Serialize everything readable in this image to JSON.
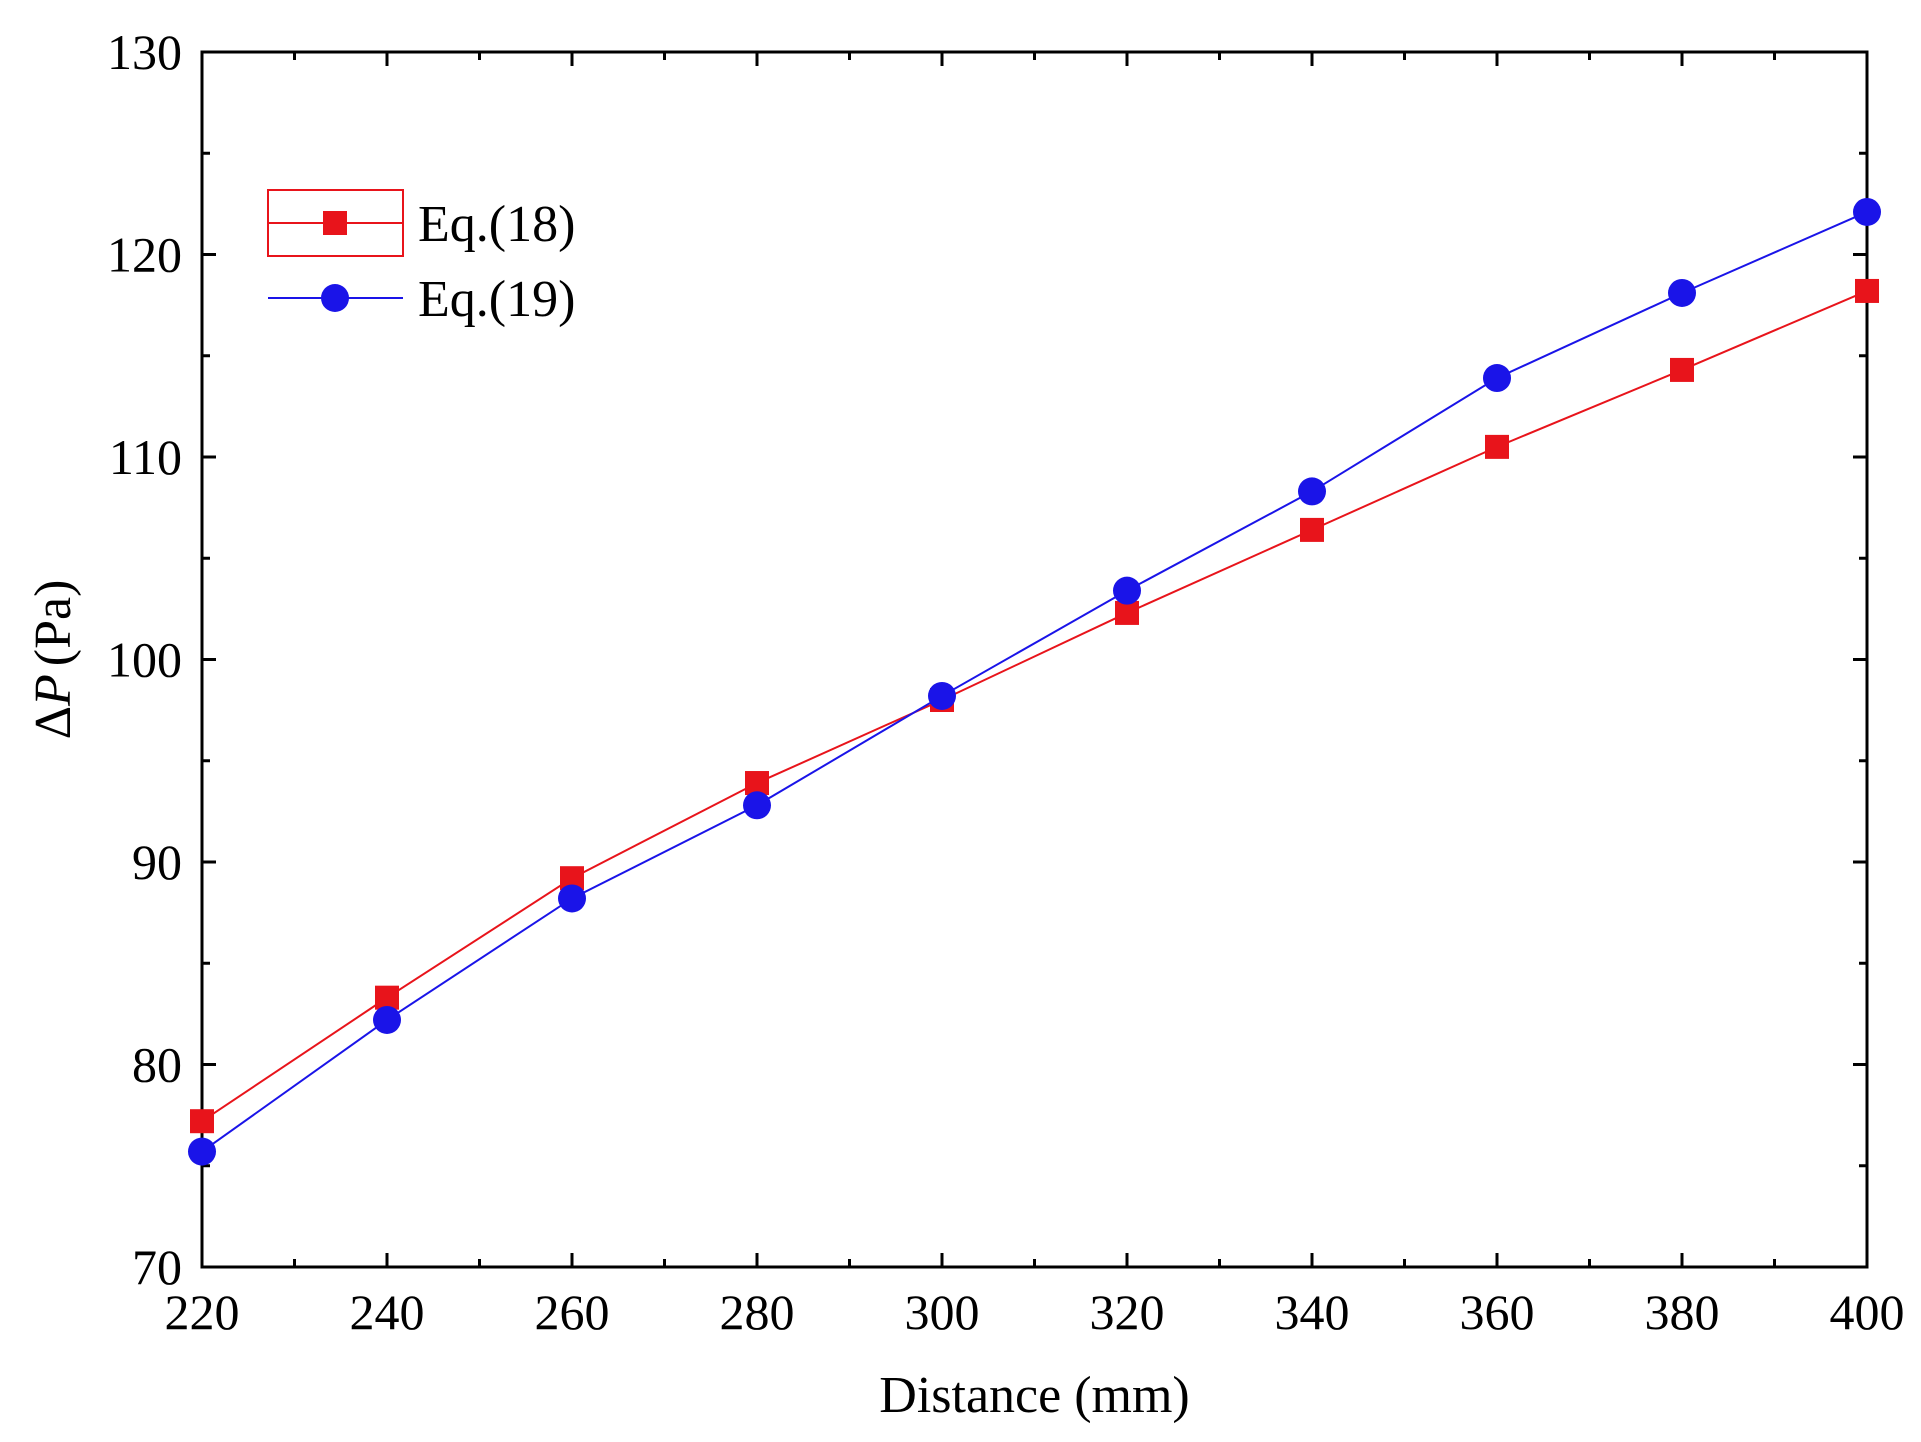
{
  "chart_data": {
    "type": "line",
    "title": "",
    "xlabel": "Distance (mm)",
    "ylabel": {
      "symbol": "ΔP",
      "delta": "Δ",
      "var": "P",
      "unit": "(Pa)"
    },
    "xlim": [
      220,
      400
    ],
    "ylim": [
      70,
      130
    ],
    "xticks": [
      220,
      240,
      260,
      280,
      300,
      320,
      340,
      360,
      380,
      400
    ],
    "yticks": [
      70,
      80,
      90,
      100,
      110,
      120,
      130
    ],
    "grid": false,
    "legend_position": "top-left",
    "x": [
      220,
      240,
      260,
      280,
      300,
      320,
      340,
      360,
      380,
      400
    ],
    "series": [
      {
        "name": "Eq.(18)",
        "color": "#e8141b",
        "marker": "square",
        "values": [
          77.2,
          83.3,
          89.2,
          93.9,
          98.0,
          102.3,
          106.4,
          110.5,
          114.3,
          118.2
        ]
      },
      {
        "name": "Eq.(19)",
        "color": "#1a14e8",
        "marker": "circle",
        "values": [
          75.7,
          82.2,
          88.2,
          92.8,
          98.2,
          103.4,
          108.3,
          113.9,
          118.1,
          122.1
        ]
      }
    ]
  }
}
